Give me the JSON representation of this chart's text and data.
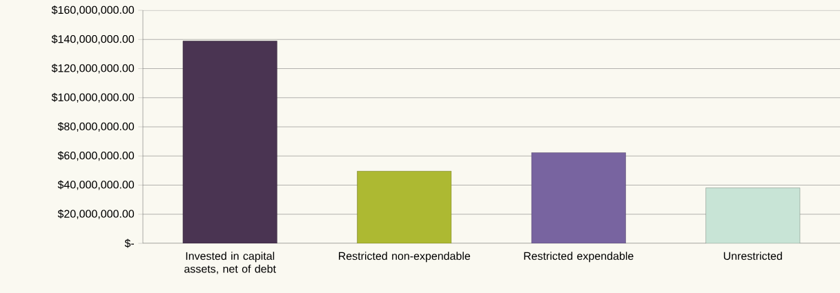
{
  "chart_data": {
    "type": "bar",
    "categories": [
      "Invested in capital assets, net of debt",
      "Restricted non-expendable",
      "Restricted expendable",
      "Unrestricted"
    ],
    "values": [
      138900000,
      49600000,
      62300000,
      38100000
    ],
    "colors": [
      "#4a3452",
      "#adb932",
      "#7864a0",
      "#c8e4d6"
    ],
    "ylim": [
      0,
      160000000
    ],
    "yticks": [
      {
        "value": 0,
        "label": "$-"
      },
      {
        "value": 20000000,
        "label": "$20,000,000.00"
      },
      {
        "value": 40000000,
        "label": "$40,000,000.00"
      },
      {
        "value": 60000000,
        "label": "$60,000,000.00"
      },
      {
        "value": 80000000,
        "label": "$80,000,000.00"
      },
      {
        "value": 100000000,
        "label": "$100,000,000.00"
      },
      {
        "value": 120000000,
        "label": "$120,000,000.00"
      },
      {
        "value": 140000000,
        "label": "$140,000,000.00"
      },
      {
        "value": 160000000,
        "label": "$160,000,000.00"
      }
    ],
    "grid": "y"
  }
}
